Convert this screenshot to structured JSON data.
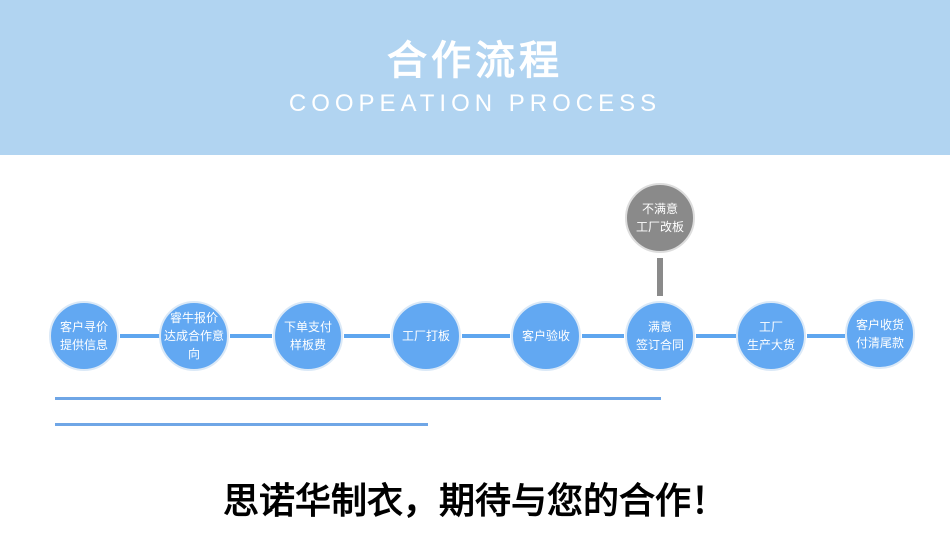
{
  "header": {
    "title": "合作流程",
    "subtitle": "COOPEATION PROCESS"
  },
  "steps": [
    {
      "line1": "客户寻价",
      "line2": "提供信息"
    },
    {
      "line1": "睿牛报价",
      "line2": "达成合作意向"
    },
    {
      "line1": "下单支付",
      "line2": "样板费"
    },
    {
      "line1": "工厂打板",
      "line2": ""
    },
    {
      "line1": "客户验收",
      "line2": ""
    },
    {
      "line1": "满意",
      "line2": "签订合同"
    },
    {
      "line1": "工厂",
      "line2": "生产大货"
    },
    {
      "line1": "客户收货",
      "line2": "付清尾款"
    }
  ],
  "branch": {
    "line1": "不满意",
    "line2": "工厂改板"
  },
  "slogan": "思诺华制衣，期待与您的合作！",
  "colors": {
    "header": "#b1d4f1",
    "step": "#62a8f2",
    "branch": "#8a8a8a"
  }
}
